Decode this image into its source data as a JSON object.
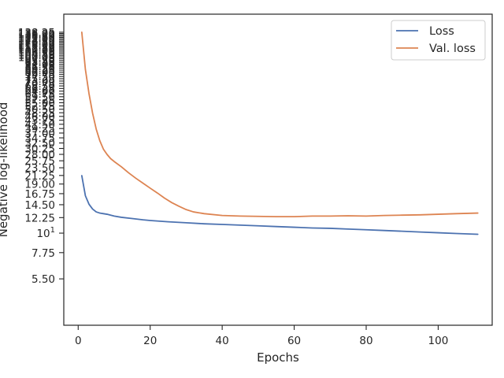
{
  "chart_data": {
    "type": "line",
    "title": "",
    "xlabel": "Epochs",
    "ylabel": "Negative log-likelihood",
    "xlim": [
      -4,
      115
    ],
    "ylim": [
      3.0,
      175.0
    ],
    "yscale": "log",
    "grid": false,
    "legend_position": "top-right",
    "x_ticks": [
      0,
      20,
      40,
      60,
      80,
      100
    ],
    "y_ticks": [
      "5.50",
      "7.75",
      "10^1",
      "12.25",
      "14.50",
      "16.75",
      "19.00",
      "21.25",
      "23.50",
      "25.75",
      "28.00",
      "30.25",
      "32.50",
      "34.75",
      "37.00",
      "39.25",
      "41.50",
      "43.75",
      "46.00",
      "48.25",
      "50.50",
      "52.75",
      "55.00",
      "57.25",
      "59.50",
      "61.75",
      "64.00",
      "66.25",
      "68.50",
      "70.75",
      "73.00",
      "75.25",
      "77.50",
      "79.75",
      "82.00",
      "84.25",
      "86.50",
      "88.75",
      "91.00",
      "93.25",
      "95.50",
      "97.75",
      "100.00",
      "102.25",
      "104.50",
      "106.75",
      "109.00",
      "111.25",
      "113.50",
      "115.75",
      "118.00",
      "120.25",
      "122.50",
      "124.75",
      "127.00",
      "129.25",
      "131.50",
      "133.75",
      "136.00",
      "138.25"
    ],
    "series": [
      {
        "name": "Loss",
        "color": "#4c72b0",
        "x": [
          1,
          2,
          3,
          4,
          5,
          6,
          7,
          8,
          10,
          12,
          15,
          18,
          20,
          25,
          30,
          35,
          40,
          45,
          50,
          55,
          60,
          65,
          70,
          75,
          80,
          85,
          90,
          95,
          100,
          105,
          111
        ],
        "values": [
          21.2,
          16.3,
          14.6,
          13.7,
          13.2,
          13.0,
          12.9,
          12.8,
          12.5,
          12.3,
          12.1,
          11.9,
          11.8,
          11.6,
          11.45,
          11.3,
          11.2,
          11.1,
          11.0,
          10.9,
          10.8,
          10.7,
          10.65,
          10.55,
          10.45,
          10.35,
          10.25,
          10.15,
          10.05,
          9.95,
          9.85
        ]
      },
      {
        "name": "Val. loss",
        "color": "#dd8452",
        "x": [
          1,
          2,
          3,
          4,
          5,
          6,
          7,
          8,
          9,
          10,
          12,
          14,
          16,
          18,
          20,
          22,
          24,
          26,
          28,
          30,
          32,
          35,
          40,
          45,
          50,
          55,
          60,
          65,
          70,
          75,
          80,
          85,
          90,
          95,
          100,
          105,
          111
        ],
        "values": [
          138.25,
          85.0,
          62.0,
          48.0,
          39.0,
          33.5,
          30.0,
          28.0,
          26.5,
          25.5,
          23.8,
          22.0,
          20.5,
          19.2,
          18.0,
          16.9,
          15.8,
          14.9,
          14.2,
          13.6,
          13.2,
          12.9,
          12.6,
          12.5,
          12.45,
          12.4,
          12.4,
          12.5,
          12.5,
          12.55,
          12.5,
          12.6,
          12.65,
          12.7,
          12.8,
          12.9,
          13.0
        ]
      }
    ]
  }
}
